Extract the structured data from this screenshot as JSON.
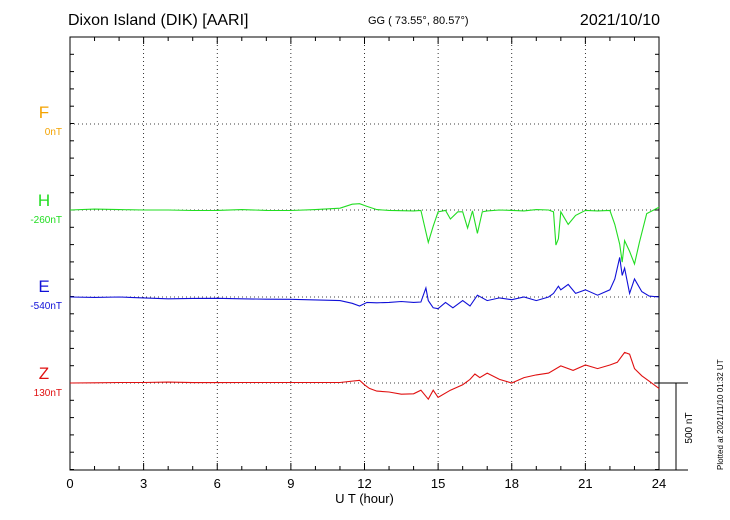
{
  "header": {
    "station": "Dixon Island (DIK)  [AARI]",
    "coords": "GG ( 73.55°,  80.57°)",
    "date": "2021/10/10"
  },
  "footer": {
    "plotted": "Plotted at 2021/11/10 01:32 UT"
  },
  "colors": {
    "F": "#f4a300",
    "H": "#22dd22",
    "E": "#1010d8",
    "Z": "#e01010"
  },
  "chart_data": {
    "type": "line",
    "xlabel": "U T (hour)",
    "xlim": [
      0,
      24
    ],
    "xticks": [
      "0",
      "3",
      "6",
      "9",
      "12",
      "15",
      "18",
      "21",
      "24"
    ],
    "scale_bar_label": "500 nT",
    "series": [
      {
        "name": "F",
        "baseline": "0nT",
        "x": [],
        "y": []
      },
      {
        "name": "H",
        "baseline": "-260nT",
        "x": [
          0,
          1,
          2,
          3,
          4,
          5,
          6,
          7,
          8,
          9,
          10,
          11,
          11.5,
          11.8,
          12.1,
          12.5,
          13,
          14,
          14.3,
          14.6,
          14.8,
          15,
          15.3,
          15.5,
          15.8,
          16,
          16.2,
          16.4,
          16.6,
          16.8,
          17,
          17.5,
          18,
          18.5,
          19,
          19.5,
          19.7,
          19.8,
          19.9,
          20,
          20.3,
          20.6,
          21,
          21.5,
          22,
          22.2,
          22.4,
          22.5,
          22.6,
          22.8,
          23,
          23.2,
          23.5,
          24
        ],
        "y": [
          -260,
          -255,
          -258,
          -260,
          -260,
          -263,
          -262,
          -258,
          -262,
          -263,
          -258,
          -250,
          -228,
          -225,
          -240,
          -258,
          -262,
          -265,
          -262,
          -440,
          -350,
          -270,
          -262,
          -310,
          -270,
          -270,
          -360,
          -265,
          -390,
          -270,
          -265,
          -260,
          -262,
          -265,
          -258,
          -260,
          -270,
          -455,
          -420,
          -270,
          -340,
          -290,
          -262,
          -265,
          -262,
          -340,
          -450,
          -550,
          -430,
          -490,
          -560,
          -440,
          -280,
          -245
        ]
      },
      {
        "name": "E",
        "baseline": "-540nT",
        "x": [
          0,
          1,
          2,
          3,
          4,
          5,
          6,
          7,
          8,
          9,
          10,
          11,
          11.5,
          11.8,
          12.1,
          12.5,
          13,
          13.5,
          14,
          14.3,
          14.5,
          14.6,
          14.8,
          15,
          15.3,
          15.6,
          16,
          16.3,
          16.6,
          17,
          17.5,
          18,
          18.5,
          19,
          19.5,
          19.7,
          19.9,
          20,
          20.3,
          20.6,
          21,
          21.5,
          22,
          22.2,
          22.4,
          22.5,
          22.6,
          22.8,
          23,
          23.3,
          23.6,
          24
        ],
        "y": [
          -540,
          -542,
          -540,
          -545,
          -550,
          -548,
          -547,
          -550,
          -552,
          -553,
          -556,
          -560,
          -575,
          -590,
          -570,
          -572,
          -570,
          -565,
          -570,
          -568,
          -490,
          -560,
          -600,
          -605,
          -570,
          -600,
          -560,
          -590,
          -530,
          -560,
          -545,
          -555,
          -540,
          -560,
          -540,
          -520,
          -480,
          -500,
          -470,
          -520,
          -500,
          -530,
          -500,
          -440,
          -320,
          -420,
          -380,
          -520,
          -440,
          -510,
          -535,
          -540
        ]
      },
      {
        "name": "Z",
        "baseline": "130nT",
        "x": [
          0,
          1,
          2,
          3,
          4,
          5,
          6,
          7,
          8,
          9,
          10,
          11,
          11.8,
          12,
          12.2,
          12.5,
          13,
          13.5,
          14,
          14.3,
          14.6,
          14.8,
          15,
          15.5,
          16,
          16.3,
          16.5,
          16.7,
          17,
          17.5,
          18,
          18.5,
          19,
          19.5,
          20,
          20.5,
          21,
          21.5,
          22,
          22.3,
          22.6,
          22.8,
          23,
          23.3,
          23.6,
          24
        ],
        "y": [
          130,
          131,
          133,
          133,
          135,
          132,
          132,
          133,
          133,
          133,
          133,
          133,
          145,
          120,
          100,
          85,
          80,
          68,
          70,
          90,
          40,
          90,
          50,
          90,
          120,
          150,
          180,
          160,
          185,
          150,
          130,
          160,
          175,
          185,
          225,
          200,
          230,
          210,
          230,
          245,
          300,
          290,
          210,
          170,
          140,
          100
        ]
      }
    ]
  }
}
